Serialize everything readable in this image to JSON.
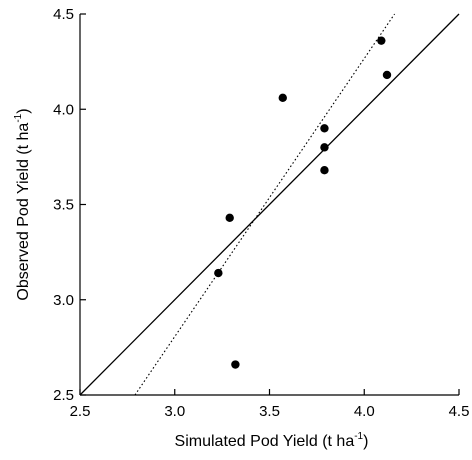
{
  "chart_data": {
    "type": "scatter",
    "title": "",
    "xlabel": {
      "main": "Simulated Pod Yield (t ha",
      "superscript": "-1",
      "close": ")"
    },
    "ylabel": {
      "main": "Observed Pod Yield (t ha",
      "superscript": "-1",
      "close": ")"
    },
    "xlim": [
      2.5,
      4.5
    ],
    "ylim": [
      2.5,
      4.5
    ],
    "xticks": [
      "2.5",
      "3.0",
      "3.5",
      "4.0",
      "4.5"
    ],
    "yticks": [
      "2.5",
      "3.0",
      "3.5",
      "4.0",
      "4.5"
    ],
    "grid": false,
    "series": [
      {
        "points": [
          {
            "x": 3.23,
            "y": 3.14
          },
          {
            "x": 3.29,
            "y": 3.43
          },
          {
            "x": 3.32,
            "y": 2.66
          },
          {
            "x": 3.57,
            "y": 4.06
          },
          {
            "x": 3.79,
            "y": 3.9
          },
          {
            "x": 3.79,
            "y": 3.8
          },
          {
            "x": 3.79,
            "y": 3.68
          },
          {
            "x": 4.09,
            "y": 4.36
          },
          {
            "x": 4.12,
            "y": 4.18
          }
        ]
      }
    ],
    "lines": [
      {
        "style": "solid",
        "from": {
          "x": 2.5,
          "y": 2.5
        },
        "to": {
          "x": 4.5,
          "y": 4.5
        }
      },
      {
        "style": "dotted",
        "from": {
          "x": 2.79,
          "y": 2.5
        },
        "to": {
          "x": 4.16,
          "y": 4.5
        }
      }
    ]
  }
}
